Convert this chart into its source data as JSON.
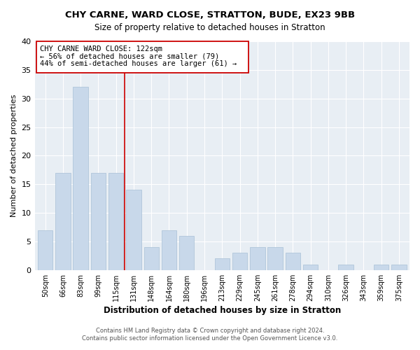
{
  "title1": "CHY CARNE, WARD CLOSE, STRATTON, BUDE, EX23 9BB",
  "title2": "Size of property relative to detached houses in Stratton",
  "xlabel": "Distribution of detached houses by size in Stratton",
  "ylabel": "Number of detached properties",
  "bar_color": "#c8d8ea",
  "bar_edge_color": "#a8c0d6",
  "categories": [
    "50sqm",
    "66sqm",
    "83sqm",
    "99sqm",
    "115sqm",
    "131sqm",
    "148sqm",
    "164sqm",
    "180sqm",
    "196sqm",
    "213sqm",
    "229sqm",
    "245sqm",
    "261sqm",
    "278sqm",
    "294sqm",
    "310sqm",
    "326sqm",
    "343sqm",
    "359sqm",
    "375sqm"
  ],
  "values": [
    7,
    17,
    32,
    17,
    17,
    14,
    4,
    7,
    6,
    0,
    2,
    3,
    4,
    4,
    3,
    1,
    0,
    1,
    0,
    1,
    1
  ],
  "ylim": [
    0,
    40
  ],
  "yticks": [
    0,
    5,
    10,
    15,
    20,
    25,
    30,
    35,
    40
  ],
  "marker_label": "CHY CARNE WARD CLOSE: 122sqm",
  "annotation_line1": "← 56% of detached houses are smaller (79)",
  "annotation_line2": "44% of semi-detached houses are larger (61) →",
  "vline_color": "#cc0000",
  "box_edge_color": "#cc0000",
  "footer1": "Contains HM Land Registry data © Crown copyright and database right 2024.",
  "footer2": "Contains public sector information licensed under the Open Government Licence v3.0.",
  "background_color": "#ffffff",
  "plot_bg_color": "#e8eef4"
}
